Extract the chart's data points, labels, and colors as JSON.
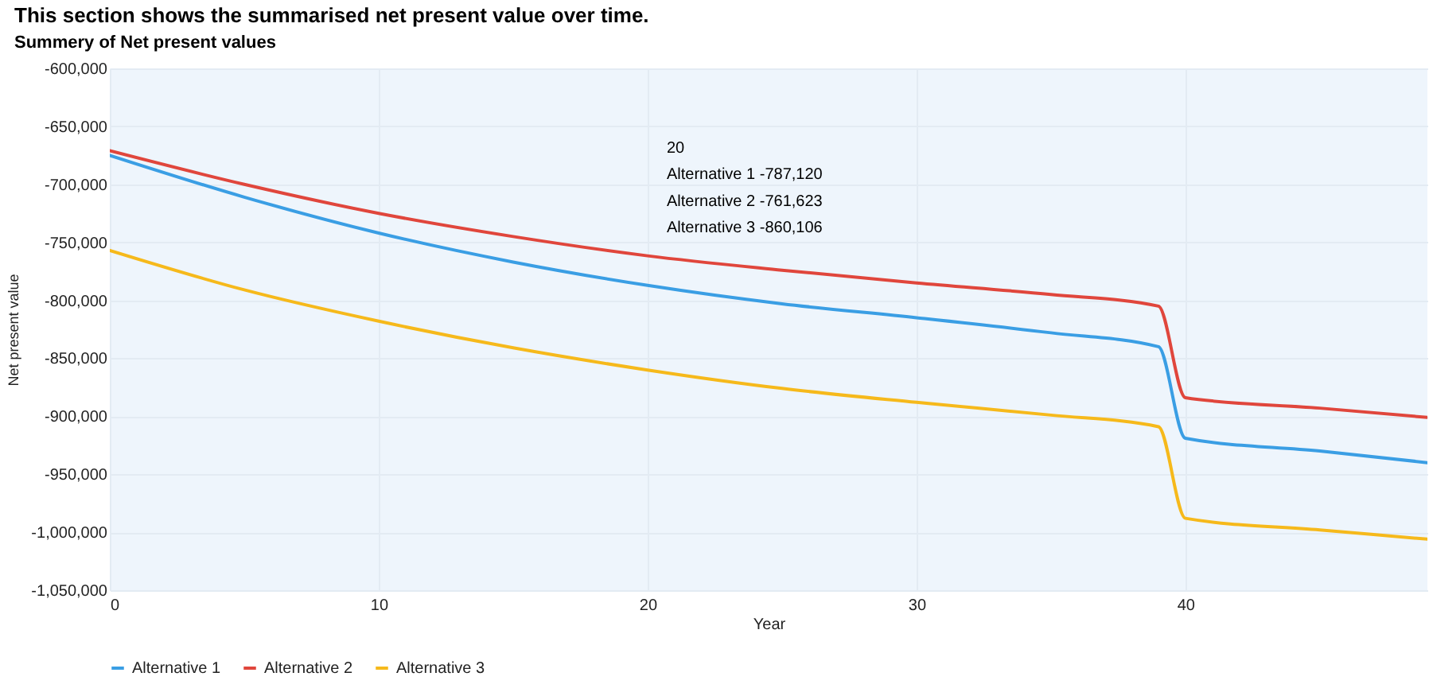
{
  "chart_data": {
    "type": "line",
    "title": "This section shows the summarised net present value over time.",
    "subtitle": "Summery of Net present values",
    "xlabel": "Year",
    "ylabel": "Net present value",
    "x": [
      0,
      5,
      10,
      15,
      20,
      25,
      30,
      35,
      39,
      40,
      45,
      49
    ],
    "series": [
      {
        "name": "Alternative 1",
        "color": "#3a9ee4",
        "values": [
          -675000,
          -711000,
          -742000,
          -767000,
          -787120,
          -803000,
          -815000,
          -828000,
          -840000,
          -919000,
          -930000,
          -940000
        ]
      },
      {
        "name": "Alternative 2",
        "color": "#e0463c",
        "values": [
          -671000,
          -700000,
          -725000,
          -745000,
          -761623,
          -774000,
          -785000,
          -795000,
          -805000,
          -884000,
          -893000,
          -901000
        ]
      },
      {
        "name": "Alternative 3",
        "color": "#f6b91b",
        "values": [
          -757000,
          -791000,
          -818000,
          -841000,
          -860106,
          -876000,
          -888000,
          -899000,
          -909000,
          -988000,
          -998000,
          -1006000
        ]
      }
    ],
    "xlim": [
      0,
      49
    ],
    "xticks": [
      0,
      10,
      20,
      30,
      40
    ],
    "ylim": [
      -1050000,
      -600000
    ],
    "yticks": [
      {
        "value": -1050000,
        "label": "-1,050,000"
      },
      {
        "value": -1000000,
        "label": "-1,000,000"
      },
      {
        "value": -950000,
        "label": "-950,000"
      },
      {
        "value": -900000,
        "label": "-900,000"
      },
      {
        "value": -850000,
        "label": "-850,000"
      },
      {
        "value": -800000,
        "label": "-800,000"
      },
      {
        "value": -750000,
        "label": "-750,000"
      },
      {
        "value": -700000,
        "label": "-700,000"
      },
      {
        "value": -650000,
        "label": "-650,000"
      },
      {
        "value": -600000,
        "label": "-600,000"
      }
    ],
    "grid": true,
    "legend": "bottom",
    "marker": "none",
    "line_style": "solid",
    "annotations": [
      "20",
      "Alternative 1  -787,120",
      "Alternative 2  -761,623",
      "Alternative 3  -860,106"
    ]
  }
}
